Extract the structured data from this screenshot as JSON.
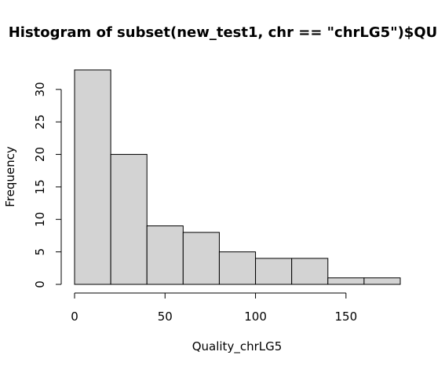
{
  "chart_data": {
    "type": "bar",
    "title": "Histogram of subset(new_test1, chr == \"chrLG5\")$QU",
    "xlabel": "Quality_chrLG5",
    "ylabel": "Frequency",
    "bins": [
      {
        "x0": 0,
        "x1": 20,
        "count": 33
      },
      {
        "x0": 20,
        "x1": 40,
        "count": 20
      },
      {
        "x0": 40,
        "x1": 60,
        "count": 9
      },
      {
        "x0": 60,
        "x1": 80,
        "count": 8
      },
      {
        "x0": 80,
        "x1": 100,
        "count": 5
      },
      {
        "x0": 100,
        "x1": 120,
        "count": 4
      },
      {
        "x0": 120,
        "x1": 140,
        "count": 4
      },
      {
        "x0": 140,
        "x1": 160,
        "count": 1
      },
      {
        "x0": 160,
        "x1": 180,
        "count": 1
      }
    ],
    "xticks": [
      0,
      50,
      100,
      150
    ],
    "yticks": [
      0,
      5,
      10,
      15,
      20,
      25,
      30
    ],
    "xlim": [
      0,
      180
    ],
    "ylim": [
      0,
      33
    ],
    "grid": false,
    "bar_fill": "#d3d3d3",
    "bar_stroke": "#000000"
  }
}
